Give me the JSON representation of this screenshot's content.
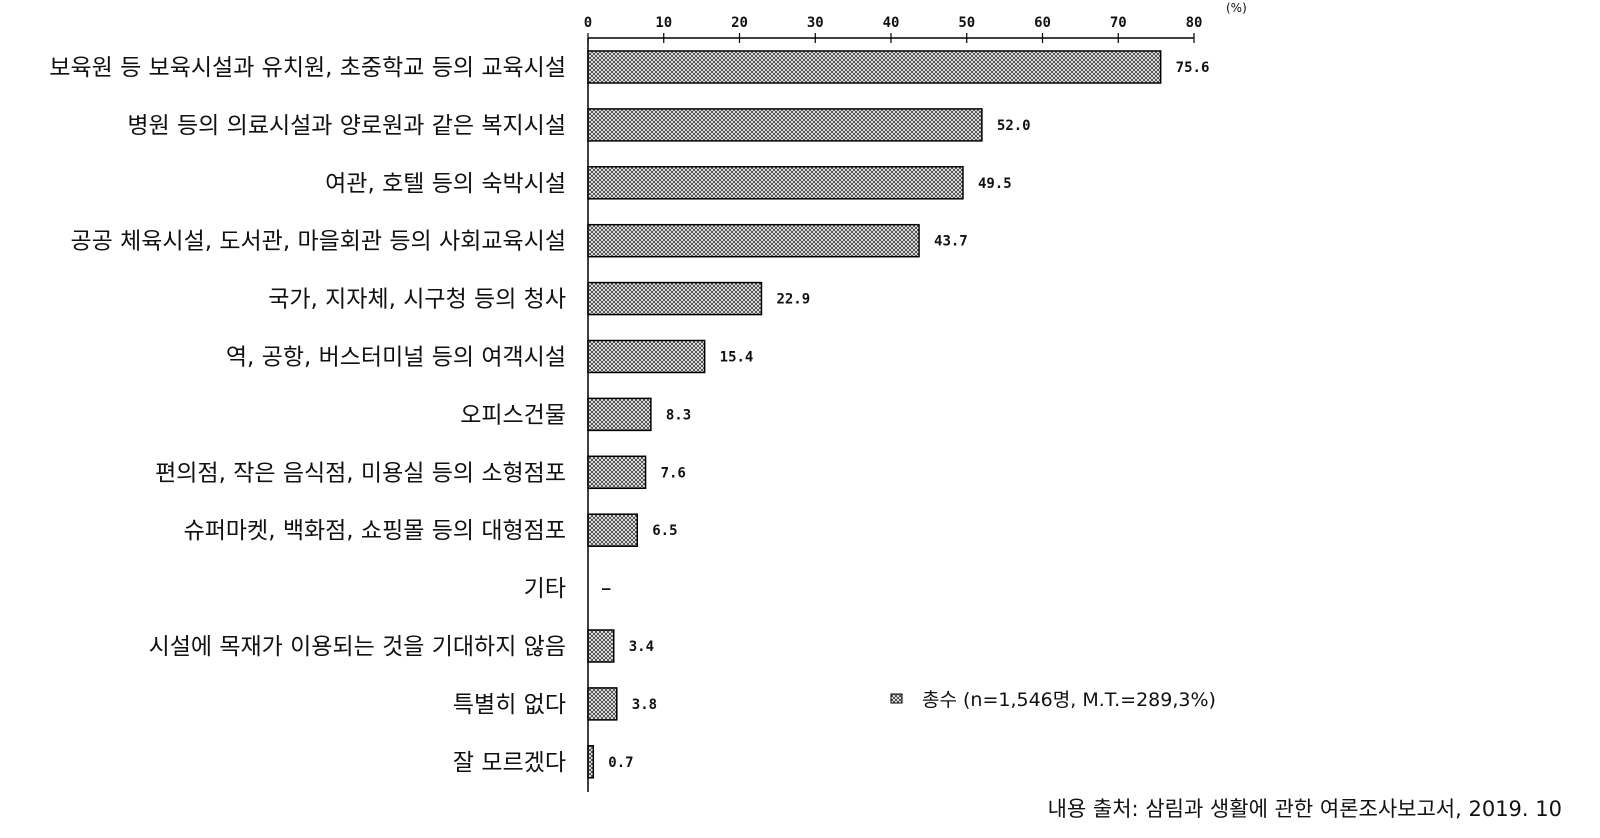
{
  "chart_data": {
    "type": "bar",
    "orientation": "horizontal",
    "unit": "(%)",
    "xlim": [
      0,
      80
    ],
    "ticks": [
      0,
      10,
      20,
      30,
      40,
      50,
      60,
      70,
      80
    ],
    "categories": [
      "보육원 등 보육시설과 유치원, 초중학교 등의 교육시설",
      "병원 등의 의료시설과 양로원과 같은 복지시설",
      "여관, 호텔 등의 숙박시설",
      "공공 체육시설, 도서관, 마을회관 등의 사회교육시설",
      "국가, 지자체, 시구청 등의 청사",
      "역, 공항, 버스터미널 등의 여객시설",
      "오피스건물",
      "편의점, 작은 음식점, 미용실 등의 소형점포",
      "슈퍼마켓, 백화점, 쇼핑몰 등의 대형점포",
      "기타",
      "시설에 목재가 이용되는 것을 기대하지 않음",
      "특별히 없다",
      "잘 모르겠다"
    ],
    "series": [
      {
        "name": "총수 (n=1,546명, M.T.=289,3%)",
        "values": [
          75.6,
          52.0,
          49.5,
          43.7,
          22.9,
          15.4,
          8.3,
          7.6,
          6.5,
          null,
          3.4,
          3.8,
          0.7
        ],
        "labels": [
          "75.6",
          "52.0",
          "49.5",
          "43.7",
          "22.9",
          "15.4",
          "8.3",
          "7.6",
          "6.5",
          "–",
          "3.4",
          "3.8",
          "0.7"
        ]
      }
    ],
    "legend_position": "bottom-right",
    "grid": false
  },
  "source": "내용 출처: 삼림과 생활에 관한 여론조사보고서, 2019. 10"
}
